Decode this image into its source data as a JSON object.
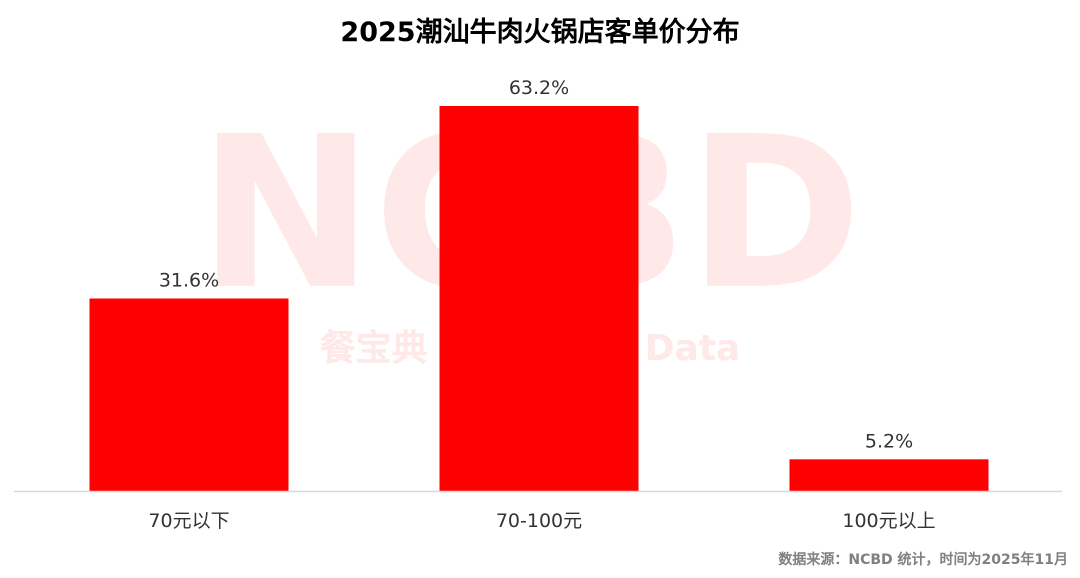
{
  "title": "2025潮汕牛肉火锅店客单价分布",
  "source_note": "数据来源：NCBD 统计，时间为2025年11月",
  "watermark": {
    "logo_text": "NCBD",
    "tagline": "餐宝典 NCBD Big Data"
  },
  "colors": {
    "bar": "#ff0000",
    "watermark": "#ffe8e8",
    "baseline": "#d9d9d9",
    "label": "#333333"
  },
  "chart_data": {
    "type": "bar",
    "categories": [
      "70元以下",
      "70-100元",
      "100元以上"
    ],
    "values": [
      31.6,
      63.2,
      5.2
    ],
    "value_labels": [
      "31.6%",
      "63.2%",
      "5.2%"
    ],
    "unit": "%",
    "title": "2025潮汕牛肉火锅店客单价分布",
    "xlabel": "",
    "ylabel": "",
    "ylim": [
      0,
      63.2
    ],
    "grid": false,
    "legend": "none"
  }
}
